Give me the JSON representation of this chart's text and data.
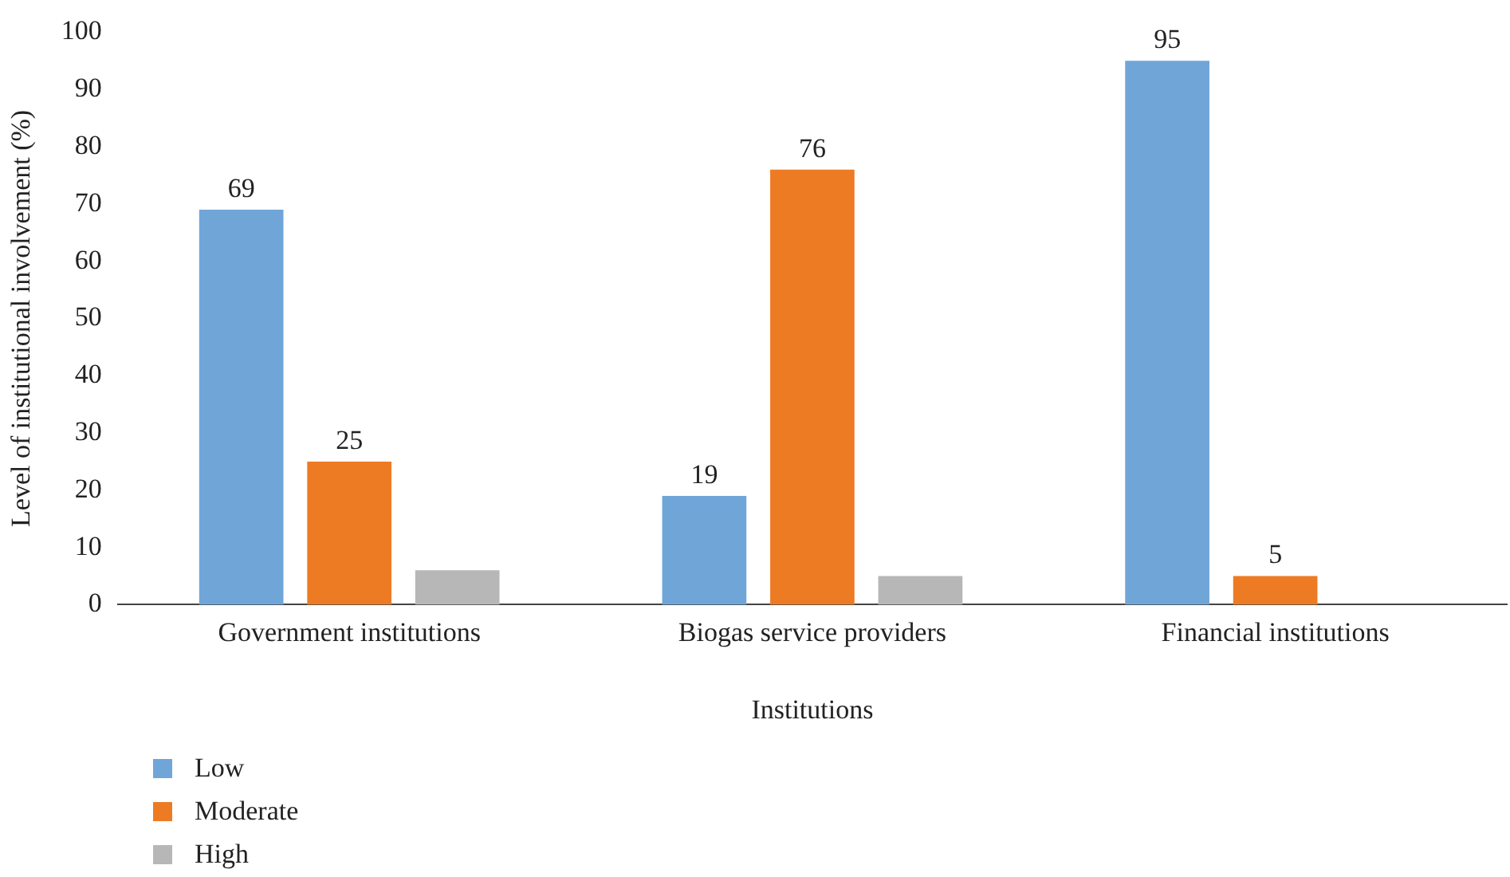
{
  "chart_data": {
    "type": "bar",
    "categories": [
      "Government institutions",
      "Biogas service providers",
      "Financial institutions"
    ],
    "series": [
      {
        "name": "Low",
        "color": "#70a5d8",
        "values": [
          69,
          19,
          95
        ],
        "value_labels": [
          "69",
          "19",
          "95"
        ]
      },
      {
        "name": "Moderate",
        "color": "#ed7b24",
        "values": [
          25,
          76,
          5
        ],
        "value_labels": [
          "25",
          "76",
          "5"
        ]
      },
      {
        "name": "High",
        "color": "#b7b7b7",
        "values": [
          6,
          5,
          0
        ],
        "value_labels": [
          null,
          null,
          null
        ]
      }
    ],
    "xlabel": "Institutions",
    "ylabel": "Level of institutional involvement (%)",
    "ylim": [
      0,
      100
    ],
    "yticks": [
      0,
      10,
      20,
      30,
      40,
      50,
      60,
      70,
      80,
      90,
      100
    ],
    "grid": false,
    "legend": "bottom left"
  }
}
